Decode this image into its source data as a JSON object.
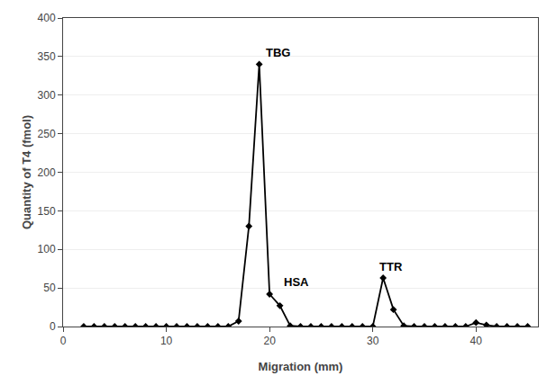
{
  "chart_data": {
    "type": "line",
    "x": [
      2,
      3,
      4,
      5,
      6,
      7,
      8,
      9,
      10,
      11,
      12,
      13,
      14,
      15,
      16,
      17,
      18,
      19,
      20,
      21,
      22,
      23,
      24,
      25,
      26,
      27,
      28,
      29,
      30,
      31,
      32,
      33,
      34,
      35,
      36,
      37,
      38,
      39,
      40,
      41,
      42,
      43,
      44,
      45
    ],
    "values": [
      0,
      0,
      0,
      0,
      0,
      0,
      0,
      0,
      0,
      0,
      0,
      0,
      0,
      0,
      0,
      7,
      130,
      340,
      42,
      27,
      1,
      0,
      0,
      0,
      0,
      0,
      0,
      0,
      0,
      63,
      22,
      1,
      0,
      0,
      0,
      0,
      0,
      0,
      5,
      2,
      0,
      0,
      0,
      0
    ],
    "color": "#000000",
    "marker": "diamond",
    "annotations": [
      {
        "text": "TBG",
        "x": 19.5,
        "y": 344
      },
      {
        "text": "HSA",
        "x": 21.2,
        "y": 47
      },
      {
        "text": "TTR",
        "x": 30.5,
        "y": 67
      }
    ],
    "xlabel": "Migration (mm)",
    "ylabel": "Quantity of T4 (fmol)",
    "xlim": [
      0,
      46
    ],
    "ylim": [
      0,
      400
    ],
    "xticks": [
      0,
      10,
      20,
      30,
      40
    ],
    "yticks": [
      0,
      50,
      100,
      150,
      200,
      250,
      300,
      350,
      400
    ],
    "grid": "y"
  }
}
